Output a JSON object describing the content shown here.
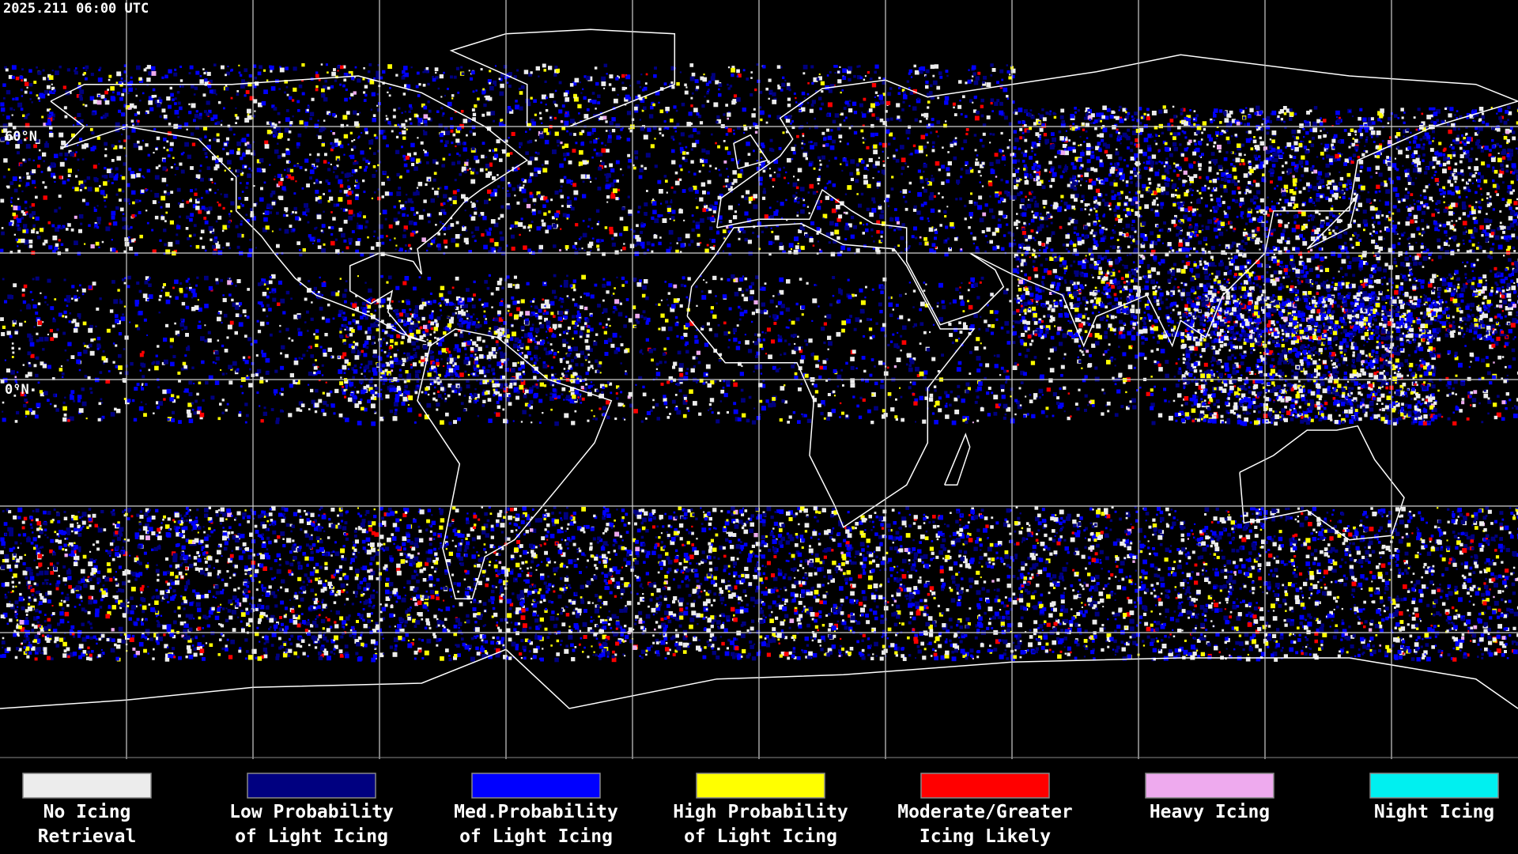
{
  "header": {
    "timestamp": "2025.211 06:00 UTC"
  },
  "map": {
    "lat_labels": [
      "60°N",
      "0°N"
    ]
  },
  "legend": {
    "items": [
      {
        "label": [
          "No Icing",
          "Retrieval"
        ],
        "color": "#ececec"
      },
      {
        "label": [
          "Low Probability",
          "of Light Icing"
        ],
        "color": "#000080"
      },
      {
        "label": [
          "Med.Probability",
          "of Light Icing"
        ],
        "color": "#0000ff"
      },
      {
        "label": [
          "High Probability",
          "of Light Icing"
        ],
        "color": "#ffff00"
      },
      {
        "label": [
          "Moderate/Greater",
          "Icing Likely"
        ],
        "color": "#ff0000"
      },
      {
        "label": [
          "Heavy Icing"
        ],
        "color": "#eeaaee"
      },
      {
        "label": [
          "Night Icing"
        ],
        "color": "#00f0f0"
      }
    ]
  }
}
